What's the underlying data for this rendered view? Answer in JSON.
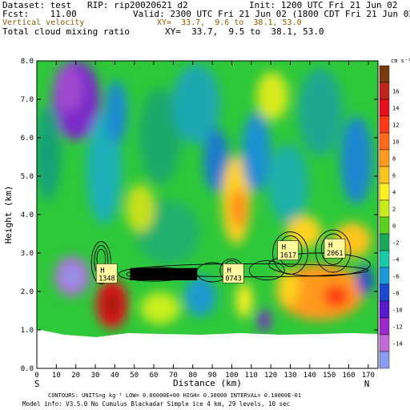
{
  "header": {
    "dataset": "Dataset: test   RIP: rip20020621 d2",
    "init": "Init: 1200 UTC Fri 21 Jun 02",
    "fcst": "Fcst:    11.00",
    "valid": "Valid: 2300 UTC Fri 21 Jun 02 (1800 CDT Fri 21 Jun 02)",
    "field1": "Vertical velocity",
    "xy1": "XY=  33.7,  9.6 to  38.1, 53.0",
    "field2": "Total cloud mixing ratio",
    "xy2": "XY=  33.7,  9.5 to  38.1, 53.0"
  },
  "footer": {
    "line1": "CONTOURS:  UNITS=g kg⁻¹  LOW= 0.00000E+00  HIGH= 0.30000      INTERVAL=  0.10000E-01",
    "line2": "Model info: V3.5.0 No Cumulus Blackadar  Simple ice     4 km,   29 levels,   10 sec"
  },
  "chart_data": {
    "type": "heatmap",
    "xlabel": "Distance (km)",
    "ylabel": "Height (km)",
    "xlim": [
      0,
      175
    ],
    "ylim": [
      0,
      8
    ],
    "x_ticks": [
      "0",
      "10",
      "20",
      "30",
      "40",
      "50",
      "60",
      "70",
      "80",
      "90",
      "100",
      "110",
      "120",
      "130",
      "140",
      "150",
      "160",
      "170"
    ],
    "y_ticks": [
      "0.0",
      "1.0",
      "2.0",
      "3.0",
      "4.0",
      "5.0",
      "6.0",
      "7.0",
      "8.0"
    ],
    "left_end_label": "S",
    "right_end_label": "N",
    "colorbar": {
      "units": "cm s⁻¹",
      "labels": [
        "16",
        "14",
        "12",
        "10",
        "8",
        "6",
        "4",
        "2",
        "0",
        "-2",
        "-4",
        "-6",
        "-8",
        "-10",
        "-12",
        "-14"
      ],
      "colors": [
        "#7a3b0c",
        "#c0281d",
        "#e8101c",
        "#ff3a18",
        "#ff6a1a",
        "#ff9a1e",
        "#ffc41c",
        "#ffee20",
        "#c8ee1a",
        "#5ad21c",
        "#1aa85c",
        "#1acaa8",
        "#1a9ad8",
        "#1a4ad0",
        "#5a1acc",
        "#9c2ac8",
        "#c26ad8",
        "#8a9cf0"
      ]
    },
    "highs": [
      {
        "label": "H",
        "value": "1348",
        "x": 35,
        "y": 2.45
      },
      {
        "label": "H",
        "value": "0743",
        "x": 100,
        "y": 2.45
      },
      {
        "label": "H",
        "value": "1617",
        "x": 128,
        "y": 3.05
      },
      {
        "label": "H",
        "value": "2061",
        "x": 152,
        "y": 3.1
      }
    ]
  }
}
